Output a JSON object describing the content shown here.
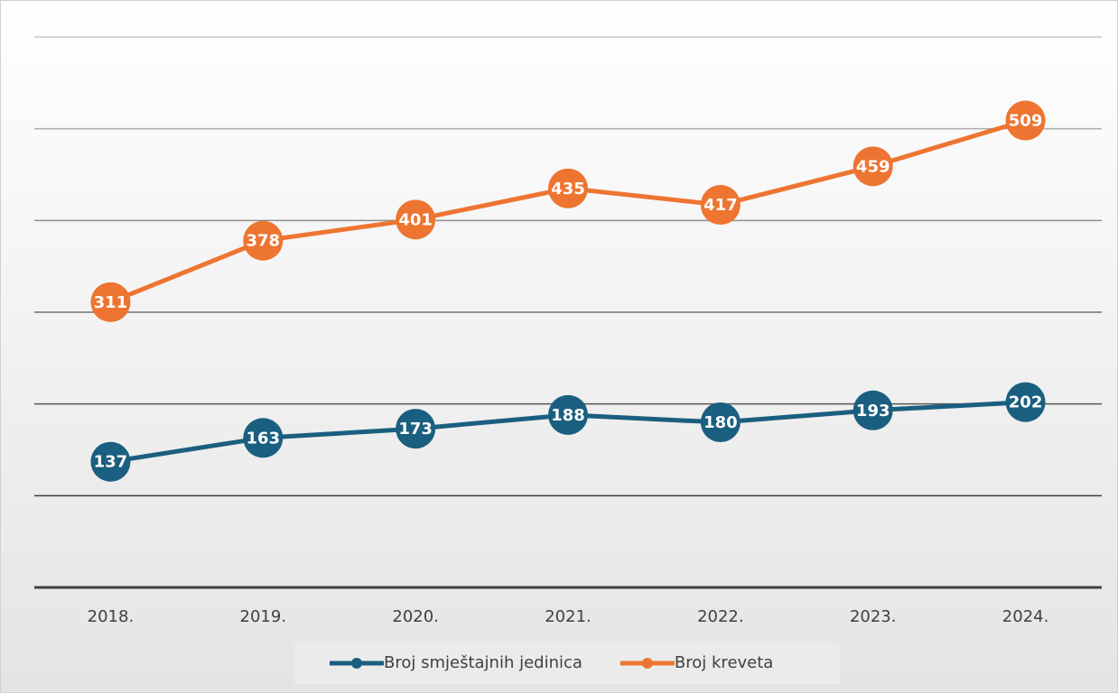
{
  "chart_data": {
    "type": "line",
    "categories": [
      "2018.",
      "2019.",
      "2020.",
      "2021.",
      "2022.",
      "2023.",
      "2024."
    ],
    "series": [
      {
        "name": "Broj smještajnih jedinica",
        "color": "#1b5f80",
        "values": [
          137,
          163,
          173,
          188,
          180,
          193,
          202
        ]
      },
      {
        "name": "Broj kreveta",
        "color": "#ed7531",
        "values": [
          311,
          378,
          401,
          435,
          417,
          459,
          509
        ]
      }
    ],
    "ylim": [
      0,
      600
    ],
    "yticks": [
      0,
      100,
      200,
      300,
      400,
      500,
      600
    ],
    "grid": true,
    "legend": "bottom"
  }
}
